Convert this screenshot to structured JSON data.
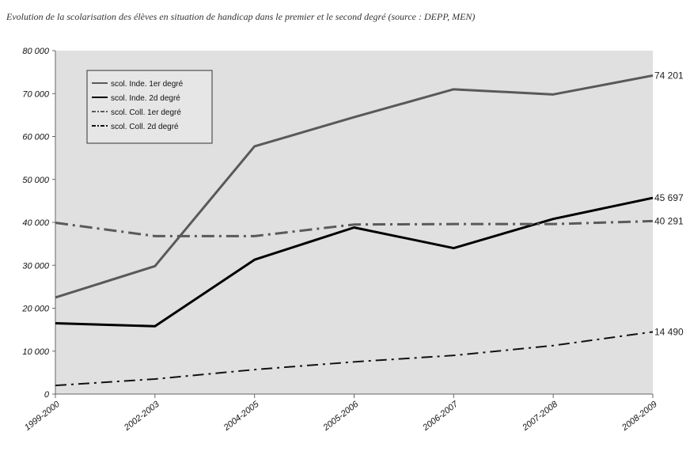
{
  "chart_data": {
    "type": "line",
    "title": "Evolution de la scolarisation des élèves en situation de handicap dans le premier et le second degré (source : DEPP, MEN)",
    "xlabel": "",
    "ylabel": "",
    "categories": [
      "1999-2000",
      "2002-2003",
      "2004-2005",
      "2005-2006",
      "2006-2007",
      "2007-2008",
      "2008-2009"
    ],
    "ylim": [
      0,
      80000
    ],
    "yticks": [
      0,
      10000,
      20000,
      30000,
      40000,
      50000,
      60000,
      70000,
      80000
    ],
    "ytick_labels": [
      "0",
      "10 000",
      "20 000",
      "30 000",
      "40 000",
      "50 000",
      "60 000",
      "70 000",
      "80 000"
    ],
    "grid": false,
    "legend_position": "top-left",
    "series": [
      {
        "name": "scol. Inde. 1er degré",
        "values": [
          22500,
          29800,
          57700,
          64500,
          71000,
          69800,
          74201
        ],
        "end_label": "74 201",
        "color": "#595959",
        "style": "solid"
      },
      {
        "name": "scol. Inde. 2d degré",
        "values": [
          16500,
          15800,
          31300,
          38800,
          34000,
          40800,
          45697
        ],
        "end_label": "45 697",
        "color": "#000000",
        "style": "solid"
      },
      {
        "name": "scol. Coll. 1er degré",
        "values": [
          39900,
          36800,
          36800,
          39500,
          39600,
          39600,
          40291
        ],
        "end_label": "40 291",
        "color": "#5a5a5a",
        "style": "dashdot"
      },
      {
        "name": "scol. Coll. 2d degré",
        "values": [
          2000,
          3500,
          5700,
          7500,
          9000,
          11300,
          14490
        ],
        "end_label": "14 490",
        "color": "#111111",
        "style": "dashdot-thin"
      }
    ]
  }
}
